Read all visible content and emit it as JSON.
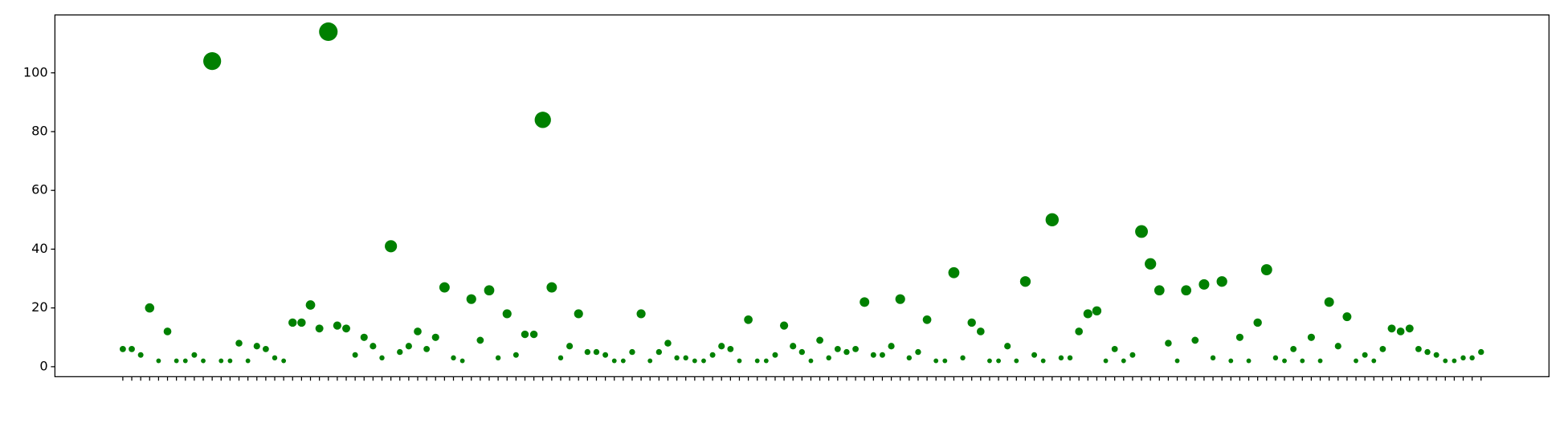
{
  "chart_data": {
    "type": "scatter",
    "categories": [
      null,
      null,
      null,
      null,
      null,
      null,
      null,
      null,
      null,
      null,
      null,
      null,
      null,
      null,
      null,
      null,
      null,
      null,
      null,
      null,
      null,
      null,
      null,
      null,
      null,
      null,
      null,
      null,
      null,
      null,
      null,
      null,
      null,
      null,
      null,
      null,
      null,
      null,
      null,
      null,
      null,
      null,
      null,
      null,
      null,
      null,
      null,
      null,
      null,
      null,
      null,
      null,
      null,
      null,
      null,
      null,
      null,
      null,
      null,
      null,
      null,
      null,
      null,
      null,
      null,
      null,
      null,
      null,
      null,
      null,
      null,
      null,
      null,
      null,
      null,
      null,
      null,
      null,
      null,
      null,
      null,
      null,
      null,
      null,
      null,
      null,
      null,
      null,
      null,
      null,
      null,
      null,
      null,
      null,
      null,
      null,
      null,
      null,
      null,
      null,
      null,
      null,
      null,
      null,
      null,
      null,
      null,
      null,
      null,
      null,
      null,
      null,
      null,
      null,
      null,
      null,
      null,
      null,
      null,
      null,
      null,
      null,
      null,
      null,
      null,
      null,
      null,
      null,
      null,
      null,
      null,
      null,
      null,
      null,
      null,
      null,
      null,
      null,
      null,
      null,
      null,
      null,
      null,
      null,
      null,
      null,
      null,
      null,
      null,
      null,
      null,
      null,
      null
    ],
    "values": [
      6,
      6,
      4,
      20,
      2,
      12,
      2,
      2,
      4,
      2,
      104,
      2,
      2,
      8,
      2,
      7,
      6,
      3,
      2,
      15,
      15,
      21,
      13,
      114,
      14,
      13,
      4,
      10,
      7,
      3,
      41,
      5,
      7,
      12,
      6,
      10,
      27,
      3,
      2,
      23,
      9,
      26,
      3,
      18,
      4,
      11,
      11,
      84,
      27,
      3,
      7,
      18,
      5,
      5,
      4,
      2,
      2,
      5,
      18,
      2,
      5,
      8,
      3,
      3,
      2,
      2,
      4,
      7,
      6,
      2,
      16,
      2,
      2,
      4,
      14,
      7,
      5,
      2,
      9,
      3,
      6,
      5,
      6,
      22,
      4,
      4,
      7,
      23,
      3,
      5,
      16,
      2,
      2,
      32,
      3,
      15,
      12,
      2,
      2,
      7,
      2,
      29,
      4,
      2,
      50,
      3,
      3,
      12,
      18,
      19,
      2,
      6,
      2,
      4,
      46,
      35,
      26,
      8,
      2,
      26,
      9,
      28,
      3,
      29,
      2,
      10,
      2,
      15,
      33,
      3,
      2,
      6,
      2,
      10,
      2,
      22,
      7,
      17,
      2,
      4,
      2,
      6,
      13,
      12,
      13,
      6,
      5,
      4,
      2,
      2,
      3,
      3,
      5
    ],
    "color": "#008000",
    "ylim": [
      -3.4,
      119.7
    ],
    "yticks": [
      0,
      20,
      40,
      60,
      80,
      100
    ]
  }
}
